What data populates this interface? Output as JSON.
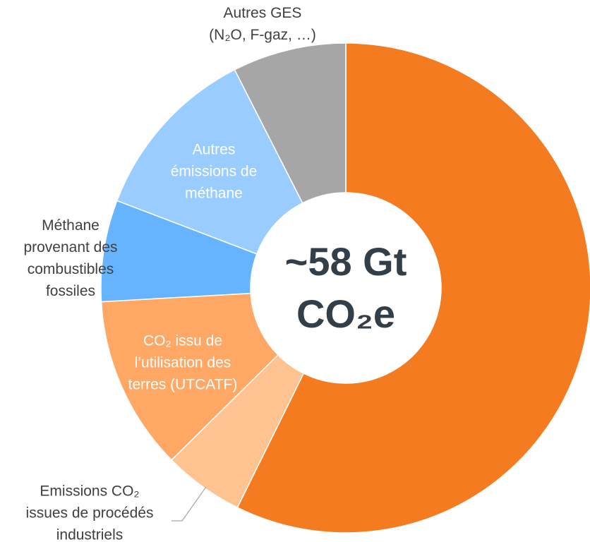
{
  "chart_data": {
    "type": "donut",
    "center_label": "~58 Gt\nCO₂e",
    "categories": [
      null,
      "Emissions CO₂\nissues de procédés\nindustriels",
      "CO₂ issu de\nl’utilisation des\nterres (UTCATF)",
      "Méthane\nprovenant des\ncombustibles\nfossiles",
      "Autres\némissions de\nméthane",
      "Autres GES\n(N₂O, F-gaz, …)"
    ],
    "values": [
      57.3,
      5.3,
      11.5,
      6.7,
      11.7,
      7.5
    ],
    "colors": [
      "#f47b20",
      "#ffc291",
      "#ffa866",
      "#66b3ff",
      "#99ccff",
      "#a6a6a6"
    ]
  }
}
